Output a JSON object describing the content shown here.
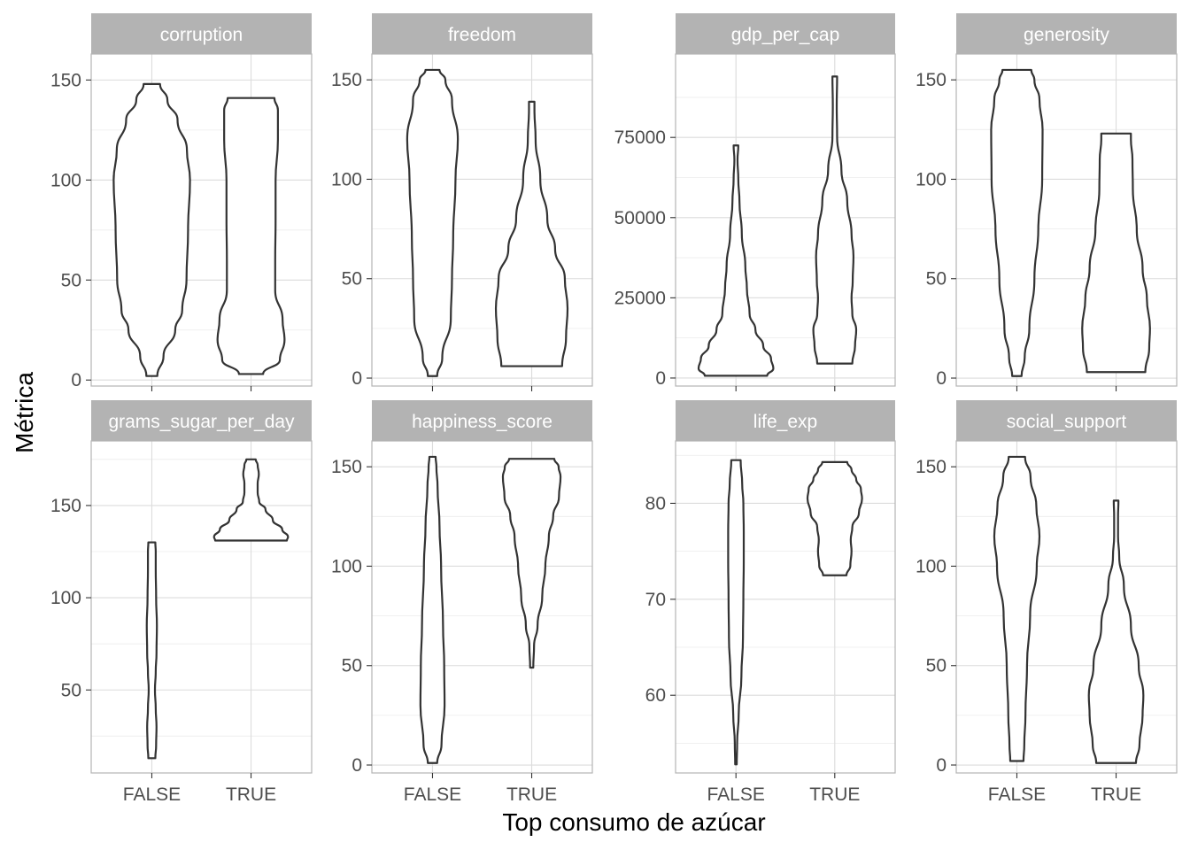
{
  "chart_data": {
    "type": "violin",
    "xlabel": "Top consumo de azúcar",
    "ylabel": "Métrica",
    "categories": [
      "FALSE",
      "TRUE"
    ],
    "facet_scales": "free_y",
    "grid": true,
    "panels": [
      {
        "title": "corruption",
        "ylim": [
          -3,
          163
        ],
        "yticks": [
          0,
          50,
          100,
          150
        ],
        "yminor": [
          25,
          75,
          125
        ],
        "violins": [
          {
            "category": "FALSE",
            "ymin": 2,
            "ymax": 148,
            "profile": [
              [
                2,
                0.14
              ],
              [
                12,
                0.3
              ],
              [
                25,
                0.6
              ],
              [
                35,
                0.78
              ],
              [
                50,
                0.89
              ],
              [
                75,
                0.93
              ],
              [
                100,
                0.98
              ],
              [
                115,
                0.9
              ],
              [
                130,
                0.66
              ],
              [
                140,
                0.4
              ],
              [
                148,
                0.21
              ]
            ]
          },
          {
            "category": "TRUE",
            "ymin": 3,
            "ymax": 141,
            "profile": [
              [
                3,
                0.31
              ],
              [
                10,
                0.74
              ],
              [
                20,
                0.86
              ],
              [
                30,
                0.81
              ],
              [
                45,
                0.62
              ],
              [
                60,
                0.62
              ],
              [
                80,
                0.63
              ],
              [
                100,
                0.63
              ],
              [
                120,
                0.69
              ],
              [
                135,
                0.69
              ],
              [
                141,
                0.6
              ]
            ]
          }
        ]
      },
      {
        "title": "freedom",
        "ylim": [
          -4,
          163
        ],
        "yticks": [
          0,
          50,
          100,
          150
        ],
        "yminor": [
          25,
          75,
          125
        ],
        "violins": [
          {
            "category": "FALSE",
            "ymin": 1,
            "ymax": 155,
            "profile": [
              [
                1,
                0.12
              ],
              [
                10,
                0.25
              ],
              [
                30,
                0.47
              ],
              [
                50,
                0.5
              ],
              [
                70,
                0.53
              ],
              [
                100,
                0.59
              ],
              [
                120,
                0.65
              ],
              [
                140,
                0.5
              ],
              [
                150,
                0.33
              ],
              [
                155,
                0.18
              ]
            ]
          },
          {
            "category": "TRUE",
            "ymin": 6,
            "ymax": 139,
            "profile": [
              [
                6,
                0.78
              ],
              [
                20,
                0.88
              ],
              [
                35,
                0.92
              ],
              [
                50,
                0.85
              ],
              [
                65,
                0.6
              ],
              [
                80,
                0.4
              ],
              [
                100,
                0.22
              ],
              [
                120,
                0.1
              ],
              [
                135,
                0.07
              ],
              [
                139,
                0.07
              ]
            ]
          }
        ]
      },
      {
        "title": "gdp_per_cap",
        "ylim": [
          -2500,
          101000
        ],
        "yticks": [
          0,
          25000,
          50000,
          75000
        ],
        "ytick_labels": [
          "0",
          "25000",
          "50000",
          "75000"
        ],
        "yminor": [
          12500,
          37500,
          62500,
          87500
        ],
        "violins": [
          {
            "category": "FALSE",
            "ymin": 700,
            "ymax": 72500,
            "profile": [
              [
                700,
                0.8
              ],
              [
                3000,
                0.96
              ],
              [
                6000,
                0.9
              ],
              [
                10000,
                0.7
              ],
              [
                15000,
                0.5
              ],
              [
                20000,
                0.35
              ],
              [
                28000,
                0.28
              ],
              [
                35000,
                0.24
              ],
              [
                45000,
                0.15
              ],
              [
                55000,
                0.09
              ],
              [
                62000,
                0.06
              ],
              [
                68000,
                0.04
              ],
              [
                72500,
                0.06
              ]
            ]
          },
          {
            "category": "TRUE",
            "ymin": 4500,
            "ymax": 94000,
            "profile": [
              [
                4500,
                0.45
              ],
              [
                10000,
                0.52
              ],
              [
                15000,
                0.55
              ],
              [
                20000,
                0.45
              ],
              [
                25000,
                0.43
              ],
              [
                30000,
                0.46
              ],
              [
                38000,
                0.48
              ],
              [
                45000,
                0.43
              ],
              [
                55000,
                0.32
              ],
              [
                65000,
                0.17
              ],
              [
                75000,
                0.06
              ],
              [
                85000,
                0.05
              ],
              [
                94000,
                0.06
              ]
            ]
          }
        ]
      },
      {
        "title": "generosity",
        "ylim": [
          -4,
          163
        ],
        "yticks": [
          0,
          50,
          100,
          150
        ],
        "yminor": [
          25,
          75,
          125
        ],
        "violins": [
          {
            "category": "FALSE",
            "ymin": 1,
            "ymax": 155,
            "profile": [
              [
                1,
                0.12
              ],
              [
                10,
                0.2
              ],
              [
                25,
                0.32
              ],
              [
                50,
                0.45
              ],
              [
                75,
                0.55
              ],
              [
                100,
                0.65
              ],
              [
                125,
                0.66
              ],
              [
                140,
                0.58
              ],
              [
                150,
                0.45
              ],
              [
                155,
                0.37
              ]
            ]
          },
          {
            "category": "TRUE",
            "ymin": 3,
            "ymax": 123,
            "profile": [
              [
                3,
                0.75
              ],
              [
                15,
                0.85
              ],
              [
                25,
                0.87
              ],
              [
                40,
                0.79
              ],
              [
                55,
                0.68
              ],
              [
                75,
                0.53
              ],
              [
                95,
                0.43
              ],
              [
                110,
                0.42
              ],
              [
                120,
                0.38
              ],
              [
                123,
                0.38
              ]
            ]
          }
        ]
      },
      {
        "title": "grams_sugar_per_day",
        "ylim": [
          5,
          185
        ],
        "yticks": [
          50,
          100,
          150
        ],
        "yminor": [
          25,
          75,
          125,
          175
        ],
        "violins": [
          {
            "category": "FALSE",
            "ymin": 13,
            "ymax": 130,
            "profile": [
              [
                13,
                0.09
              ],
              [
                20,
                0.11
              ],
              [
                30,
                0.12
              ],
              [
                40,
                0.1
              ],
              [
                50,
                0.08
              ],
              [
                60,
                0.1
              ],
              [
                70,
                0.12
              ],
              [
                85,
                0.13
              ],
              [
                100,
                0.11
              ],
              [
                115,
                0.1
              ],
              [
                125,
                0.1
              ],
              [
                130,
                0.09
              ]
            ]
          },
          {
            "category": "TRUE",
            "ymin": 131,
            "ymax": 175,
            "profile": [
              [
                131,
                0.92
              ],
              [
                133,
                0.95
              ],
              [
                137,
                0.8
              ],
              [
                142,
                0.56
              ],
              [
                148,
                0.37
              ],
              [
                152,
                0.21
              ],
              [
                157,
                0.17
              ],
              [
                162,
                0.17
              ],
              [
                167,
                0.2
              ],
              [
                172,
                0.17
              ],
              [
                175,
                0.12
              ]
            ]
          }
        ]
      },
      {
        "title": "happiness_score",
        "ylim": [
          -4,
          163
        ],
        "yticks": [
          0,
          50,
          100,
          150
        ],
        "yminor": [
          25,
          75,
          125
        ],
        "violins": [
          {
            "category": "FALSE",
            "ymin": 1,
            "ymax": 155,
            "profile": [
              [
                1,
                0.12
              ],
              [
                10,
                0.23
              ],
              [
                30,
                0.31
              ],
              [
                50,
                0.3
              ],
              [
                70,
                0.27
              ],
              [
                100,
                0.22
              ],
              [
                120,
                0.18
              ],
              [
                140,
                0.13
              ],
              [
                150,
                0.1
              ],
              [
                155,
                0.08
              ]
            ]
          },
          {
            "category": "TRUE",
            "ymin": 49,
            "ymax": 154,
            "profile": [
              [
                49,
                0.04
              ],
              [
                60,
                0.06
              ],
              [
                70,
                0.15
              ],
              [
                85,
                0.27
              ],
              [
                100,
                0.35
              ],
              [
                115,
                0.44
              ],
              [
                125,
                0.55
              ],
              [
                135,
                0.7
              ],
              [
                145,
                0.74
              ],
              [
                150,
                0.69
              ],
              [
                154,
                0.58
              ]
            ]
          }
        ]
      },
      {
        "title": "life_exp",
        "ylim": [
          51.9,
          86.5
        ],
        "yticks": [
          60,
          70,
          80
        ],
        "yminor": [
          55,
          65,
          75,
          85
        ],
        "violins": [
          {
            "category": "FALSE",
            "ymin": 52.8,
            "ymax": 84.5,
            "profile": [
              [
                52.8,
                0.02
              ],
              [
                55,
                0.03
              ],
              [
                58,
                0.07
              ],
              [
                62,
                0.14
              ],
              [
                66,
                0.18
              ],
              [
                70,
                0.19
              ],
              [
                74,
                0.2
              ],
              [
                77,
                0.2
              ],
              [
                80,
                0.19
              ],
              [
                82,
                0.16
              ],
              [
                84.5,
                0.12
              ]
            ]
          },
          {
            "category": "TRUE",
            "ymin": 72.5,
            "ymax": 84.3,
            "profile": [
              [
                72.5,
                0.3
              ],
              [
                73.5,
                0.4
              ],
              [
                75,
                0.43
              ],
              [
                76.2,
                0.41
              ],
              [
                77.5,
                0.45
              ],
              [
                79,
                0.62
              ],
              [
                80.5,
                0.7
              ],
              [
                81.5,
                0.67
              ],
              [
                82.5,
                0.55
              ],
              [
                83.5,
                0.43
              ],
              [
                84.3,
                0.32
              ]
            ]
          }
        ]
      },
      {
        "title": "social_support",
        "ylim": [
          -4,
          163
        ],
        "yticks": [
          0,
          50,
          100,
          150
        ],
        "yminor": [
          25,
          75,
          125
        ],
        "violins": [
          {
            "category": "FALSE",
            "ymin": 2,
            "ymax": 155,
            "profile": [
              [
                2,
                0.17
              ],
              [
                10,
                0.19
              ],
              [
                25,
                0.22
              ],
              [
                50,
                0.26
              ],
              [
                75,
                0.34
              ],
              [
                100,
                0.51
              ],
              [
                115,
                0.58
              ],
              [
                130,
                0.5
              ],
              [
                145,
                0.35
              ],
              [
                155,
                0.21
              ]
            ]
          },
          {
            "category": "TRUE",
            "ymin": 1,
            "ymax": 133,
            "profile": [
              [
                1,
                0.51
              ],
              [
                10,
                0.6
              ],
              [
                25,
                0.68
              ],
              [
                35,
                0.7
              ],
              [
                50,
                0.58
              ],
              [
                70,
                0.38
              ],
              [
                90,
                0.2
              ],
              [
                105,
                0.08
              ],
              [
                115,
                0.05
              ],
              [
                125,
                0.05
              ],
              [
                133,
                0.06
              ]
            ]
          }
        ]
      }
    ]
  }
}
